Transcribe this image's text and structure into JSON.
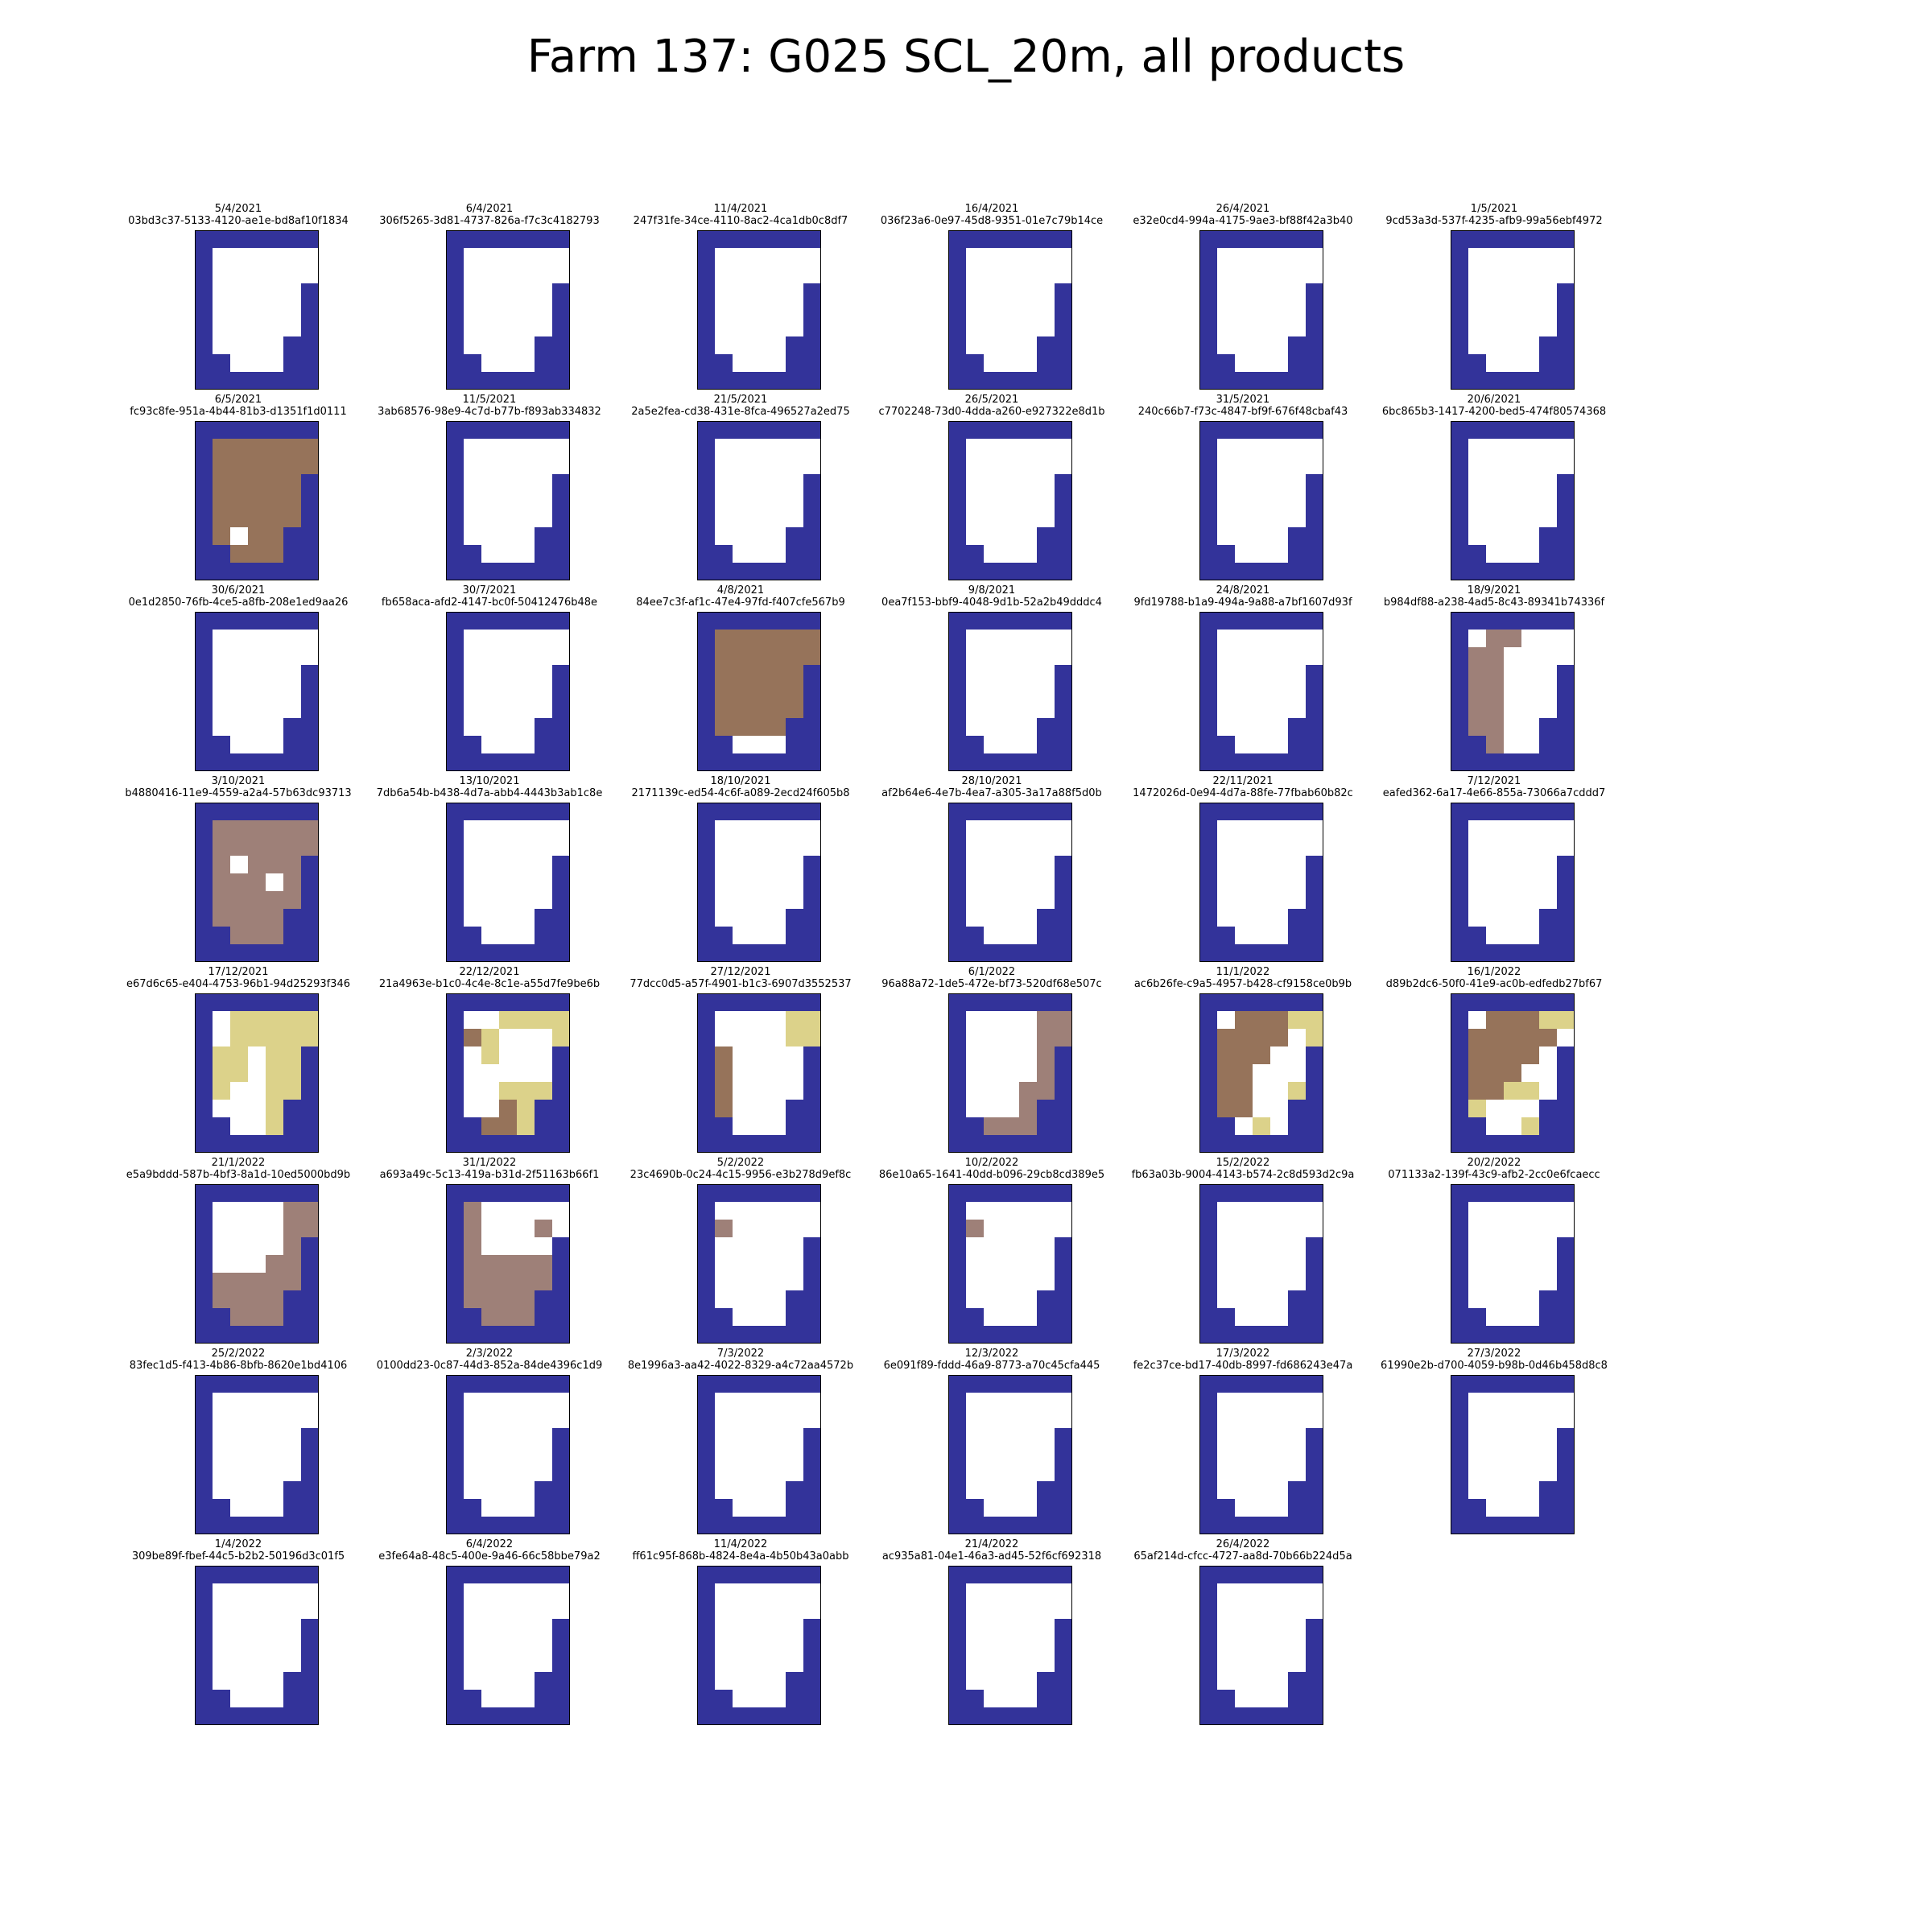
{
  "title": "Farm 137: G025 SCL_20m, all products",
  "colors": {
    "0": "#33339a",
    "1": "#ffffff",
    "2": "#96735a",
    "3": "#9e8078",
    "4": "#dcd28a"
  },
  "chart_data": {
    "type": "heatmap",
    "grid_cols": 7,
    "grid_rows": 9,
    "panels": [
      {
        "date": "5/4/2021",
        "id": "03bd3c37-5133-4120-ae1e-bd8af10f1834",
        "grid": [
          "0000000",
          "0111111",
          "0111111",
          "0111110",
          "0111110",
          "0111110",
          "0111100",
          "0011100",
          "0000000"
        ]
      },
      {
        "date": "6/4/2021",
        "id": "306f5265-3d81-4737-826a-f7c3c4182793",
        "grid": [
          "0000000",
          "0111111",
          "0111111",
          "0111110",
          "0111110",
          "0111110",
          "0111100",
          "0011100",
          "0000000"
        ]
      },
      {
        "date": "11/4/2021",
        "id": "247f31fe-34ce-4110-8ac2-4ca1db0c8df7",
        "grid": [
          "0000000",
          "0111111",
          "0111111",
          "0111110",
          "0111110",
          "0111110",
          "0111100",
          "0011100",
          "0000000"
        ]
      },
      {
        "date": "16/4/2021",
        "id": "036f23a6-0e97-45d8-9351-01e7c79b14ce",
        "grid": [
          "0000000",
          "0111111",
          "0111111",
          "0111110",
          "0111110",
          "0111110",
          "0111100",
          "0011100",
          "0000000"
        ]
      },
      {
        "date": "26/4/2021",
        "id": "e32e0cd4-994a-4175-9ae3-bf88f42a3b40",
        "grid": [
          "0000000",
          "0111111",
          "0111111",
          "0111110",
          "0111110",
          "0111110",
          "0111100",
          "0011100",
          "0000000"
        ]
      },
      {
        "date": "1/5/2021",
        "id": "9cd53a3d-537f-4235-afb9-99a56ebf4972",
        "grid": [
          "0000000",
          "0111111",
          "0111111",
          "0111110",
          "0111110",
          "0111110",
          "0111100",
          "0011100",
          "0000000"
        ]
      },
      {
        "date": "6/5/2021",
        "id": "fc93c8fe-951a-4b44-81b3-d1351f1d0111",
        "grid": [
          "0000000",
          "0222222",
          "0222222",
          "0222220",
          "0222220",
          "0222220",
          "0212200",
          "0022200",
          "0000000"
        ]
      },
      {
        "date": "11/5/2021",
        "id": "3ab68576-98e9-4c7d-b77b-f893ab334832",
        "grid": [
          "0000000",
          "0111111",
          "0111111",
          "0111110",
          "0111110",
          "0111110",
          "0111100",
          "0011100",
          "0000000"
        ]
      },
      {
        "date": "21/5/2021",
        "id": "2a5e2fea-cd38-431e-8fca-496527a2ed75",
        "grid": [
          "0000000",
          "0111111",
          "0111111",
          "0111110",
          "0111110",
          "0111110",
          "0111100",
          "0011100",
          "0000000"
        ]
      },
      {
        "date": "26/5/2021",
        "id": "c7702248-73d0-4dda-a260-e927322e8d1b",
        "grid": [
          "0000000",
          "0111111",
          "0111111",
          "0111110",
          "0111110",
          "0111110",
          "0111100",
          "0011100",
          "0000000"
        ]
      },
      {
        "date": "31/5/2021",
        "id": "240c66b7-f73c-4847-bf9f-676f48cbaf43",
        "grid": [
          "0000000",
          "0111111",
          "0111111",
          "0111110",
          "0111110",
          "0111110",
          "0111100",
          "0011100",
          "0000000"
        ]
      },
      {
        "date": "20/6/2021",
        "id": "6bc865b3-1417-4200-bed5-474f80574368",
        "grid": [
          "0000000",
          "0111111",
          "0111111",
          "0111110",
          "0111110",
          "0111110",
          "0111100",
          "0011100",
          "0000000"
        ]
      },
      {
        "date": "30/6/2021",
        "id": "0e1d2850-76fb-4ce5-a8fb-208e1ed9aa26",
        "grid": [
          "0000000",
          "0111111",
          "0111111",
          "0111110",
          "0111110",
          "0111110",
          "0111100",
          "0011100",
          "0000000"
        ]
      },
      {
        "date": "30/7/2021",
        "id": "fb658aca-afd2-4147-bc0f-50412476b48e",
        "grid": [
          "0000000",
          "0111111",
          "0111111",
          "0111110",
          "0111110",
          "0111110",
          "0111100",
          "0011100",
          "0000000"
        ]
      },
      {
        "date": "4/8/2021",
        "id": "84ee7c3f-af1c-47e4-97fd-f407cfe567b9",
        "grid": [
          "0000000",
          "0222222",
          "0222222",
          "0222220",
          "0222220",
          "0222220",
          "0222200",
          "0011100",
          "0000000"
        ]
      },
      {
        "date": "9/8/2021",
        "id": "0ea7f153-bbf9-4048-9d1b-52a2b49dddc4",
        "grid": [
          "0000000",
          "0111111",
          "0111111",
          "0111110",
          "0111110",
          "0111110",
          "0111100",
          "0011100",
          "0000000"
        ]
      },
      {
        "date": "24/8/2021",
        "id": "9fd19788-b1a9-494a-9a88-a7bf1607d93f",
        "grid": [
          "0000000",
          "0111111",
          "0111111",
          "0111110",
          "0111110",
          "0111110",
          "0111100",
          "0011100",
          "0000000"
        ]
      },
      {
        "date": "18/9/2021",
        "id": "b984df88-a238-4ad5-8c43-89341b74336f",
        "grid": [
          "0000000",
          "0133111",
          "0331111",
          "0331110",
          "0331110",
          "0331110",
          "0331100",
          "0031100",
          "0000000"
        ]
      },
      {
        "date": "3/10/2021",
        "id": "b4880416-11e9-4559-a2a4-57b63dc93713",
        "grid": [
          "0000000",
          "0333333",
          "0333333",
          "0313330",
          "0333130",
          "0333330",
          "0333300",
          "0033300",
          "0000000"
        ]
      },
      {
        "date": "13/10/2021",
        "id": "7db6a54b-b438-4d7a-abb4-4443b3ab1c8e",
        "grid": [
          "0000000",
          "0111111",
          "0111111",
          "0111110",
          "0111110",
          "0111110",
          "0111100",
          "0011100",
          "0000000"
        ]
      },
      {
        "date": "18/10/2021",
        "id": "2171139c-ed54-4c6f-a089-2ecd24f605b8",
        "grid": [
          "0000000",
          "0111111",
          "0111111",
          "0111110",
          "0111110",
          "0111110",
          "0111100",
          "0011100",
          "0000000"
        ]
      },
      {
        "date": "28/10/2021",
        "id": "af2b64e6-4e7b-4ea7-a305-3a17a88f5d0b",
        "grid": [
          "0000000",
          "0111111",
          "0111111",
          "0111110",
          "0111110",
          "0111110",
          "0111100",
          "0011100",
          "0000000"
        ]
      },
      {
        "date": "22/11/2021",
        "id": "1472026d-0e94-4d7a-88fe-77fbab60b82c",
        "grid": [
          "0000000",
          "0111111",
          "0111111",
          "0111110",
          "0111110",
          "0111110",
          "0111100",
          "0011100",
          "0000000"
        ]
      },
      {
        "date": "7/12/2021",
        "id": "eafed362-6a17-4e66-855a-73066a7cddd7",
        "grid": [
          "0000000",
          "0111111",
          "0111111",
          "0111110",
          "0111110",
          "0111110",
          "0111100",
          "0011100",
          "0000000"
        ]
      },
      {
        "date": "17/12/2021",
        "id": "e67d6c65-e404-4753-96b1-94d25293f346",
        "grid": [
          "0000000",
          "0144444",
          "0144444",
          "0441440",
          "0441440",
          "0411440",
          "0111400",
          "0011400",
          "0000000"
        ]
      },
      {
        "date": "22/12/2021",
        "id": "21a4963e-b1c0-4c4e-8c1e-a55d7fe9be6b",
        "grid": [
          "0000000",
          "0114444",
          "0241114",
          "0141110",
          "0111110",
          "0114440",
          "0112400",
          "0022400",
          "0000000"
        ]
      },
      {
        "date": "27/12/2021",
        "id": "77dcc0d5-a57f-4901-b1c3-6907d3552537",
        "grid": [
          "0000000",
          "0111144",
          "0111144",
          "0211110",
          "0211110",
          "0211110",
          "0211100",
          "0011100",
          "0000000"
        ]
      },
      {
        "date": "6/1/2022",
        "id": "96a88a72-1de5-472e-bf73-520df68e507c",
        "grid": [
          "0000000",
          "0111133",
          "0111133",
          "0111130",
          "0111130",
          "0111330",
          "0111300",
          "0033300",
          "0000000"
        ]
      },
      {
        "date": "11/1/2022",
        "id": "ac6b26fe-c9a5-4957-b428-cf9158ce0b9b",
        "grid": [
          "0000000",
          "0122244",
          "0222214",
          "0222110",
          "0221110",
          "0221140",
          "0221100",
          "0014100",
          "0000000"
        ]
      },
      {
        "date": "16/1/2022",
        "id": "d89b2dc6-50f0-41e9-ac0b-edfedb27bf67",
        "grid": [
          "0000000",
          "0122244",
          "0222221",
          "0222210",
          "0222110",
          "0224410",
          "0411100",
          "0011400",
          "0000000"
        ]
      },
      {
        "date": "21/1/2022",
        "id": "e5a9bddd-587b-4bf3-8a1d-10ed5000bd9b",
        "grid": [
          "0000000",
          "0111133",
          "0111133",
          "0111130",
          "0111330",
          "0333330",
          "0333300",
          "0033300",
          "0000000"
        ]
      },
      {
        "date": "31/1/2022",
        "id": "a693a49c-5c13-419a-b31d-2f51163b66f1",
        "grid": [
          "0000000",
          "0311111",
          "0311131",
          "0311110",
          "0333330",
          "0333330",
          "0333300",
          "0033300",
          "0000000"
        ]
      },
      {
        "date": "5/2/2022",
        "id": "23c4690b-0c24-4c15-9956-e3b278d9ef8c",
        "grid": [
          "0000000",
          "0111111",
          "0311111",
          "0111110",
          "0111110",
          "0111110",
          "0111100",
          "0011100",
          "0000000"
        ]
      },
      {
        "date": "10/2/2022",
        "id": "86e10a65-1641-40dd-b096-29cb8cd389e5",
        "grid": [
          "0000000",
          "0111111",
          "0311111",
          "0111110",
          "0111110",
          "0111110",
          "0111100",
          "0011100",
          "0000000"
        ]
      },
      {
        "date": "15/2/2022",
        "id": "fb63a03b-9004-4143-b574-2c8d593d2c9a",
        "grid": [
          "0000000",
          "0111111",
          "0111111",
          "0111110",
          "0111110",
          "0111110",
          "0111100",
          "0011100",
          "0000000"
        ]
      },
      {
        "date": "20/2/2022",
        "id": "071133a2-139f-43c9-afb2-2cc0e6fcaecc",
        "grid": [
          "0000000",
          "0111111",
          "0111111",
          "0111110",
          "0111110",
          "0111110",
          "0111100",
          "0011100",
          "0000000"
        ]
      },
      {
        "date": "25/2/2022",
        "id": "83fec1d5-f413-4b86-8bfb-8620e1bd4106",
        "grid": [
          "0000000",
          "0111111",
          "0111111",
          "0111110",
          "0111110",
          "0111110",
          "0111100",
          "0011100",
          "0000000"
        ]
      },
      {
        "date": "2/3/2022",
        "id": "0100dd23-0c87-44d3-852a-84de4396c1d9",
        "grid": [
          "0000000",
          "0111111",
          "0111111",
          "0111110",
          "0111110",
          "0111110",
          "0111100",
          "0011100",
          "0000000"
        ]
      },
      {
        "date": "7/3/2022",
        "id": "8e1996a3-aa42-4022-8329-a4c72aa4572b",
        "grid": [
          "0000000",
          "0111111",
          "0111111",
          "0111110",
          "0111110",
          "0111110",
          "0111100",
          "0011100",
          "0000000"
        ]
      },
      {
        "date": "12/3/2022",
        "id": "6e091f89-fddd-46a9-8773-a70c45cfa445",
        "grid": [
          "0000000",
          "0111111",
          "0111111",
          "0111110",
          "0111110",
          "0111110",
          "0111100",
          "0011100",
          "0000000"
        ]
      },
      {
        "date": "17/3/2022",
        "id": "fe2c37ce-bd17-40db-8997-fd686243e47a",
        "grid": [
          "0000000",
          "0111111",
          "0111111",
          "0111110",
          "0111110",
          "0111110",
          "0111100",
          "0011100",
          "0000000"
        ]
      },
      {
        "date": "27/3/2022",
        "id": "61990e2b-d700-4059-b98b-0d46b458d8c8",
        "grid": [
          "0000000",
          "0111111",
          "0111111",
          "0111110",
          "0111110",
          "0111110",
          "0111100",
          "0011100",
          "0000000"
        ]
      },
      {
        "date": "1/4/2022",
        "id": "309be89f-fbef-44c5-b2b2-50196d3c01f5",
        "grid": [
          "0000000",
          "0111111",
          "0111111",
          "0111110",
          "0111110",
          "0111110",
          "0111100",
          "0011100",
          "0000000"
        ]
      },
      {
        "date": "6/4/2022",
        "id": "e3fe64a8-48c5-400e-9a46-66c58bbe79a2",
        "grid": [
          "0000000",
          "0111111",
          "0111111",
          "0111110",
          "0111110",
          "0111110",
          "0111100",
          "0011100",
          "0000000"
        ]
      },
      {
        "date": "11/4/2022",
        "id": "ff61c95f-868b-4824-8e4a-4b50b43a0abb",
        "grid": [
          "0000000",
          "0111111",
          "0111111",
          "0111110",
          "0111110",
          "0111110",
          "0111100",
          "0011100",
          "0000000"
        ]
      },
      {
        "date": "21/4/2022",
        "id": "ac935a81-04e1-46a3-ad45-52f6cf692318",
        "grid": [
          "0000000",
          "0111111",
          "0111111",
          "0111110",
          "0111110",
          "0111110",
          "0111100",
          "0011100",
          "0000000"
        ]
      },
      {
        "date": "26/4/2022",
        "id": "65af214d-cfcc-4727-aa8d-70b66b224d5a",
        "grid": [
          "0000000",
          "0111111",
          "0111111",
          "0111110",
          "0111110",
          "0111110",
          "0111100",
          "0011100",
          "0000000"
        ]
      }
    ]
  }
}
